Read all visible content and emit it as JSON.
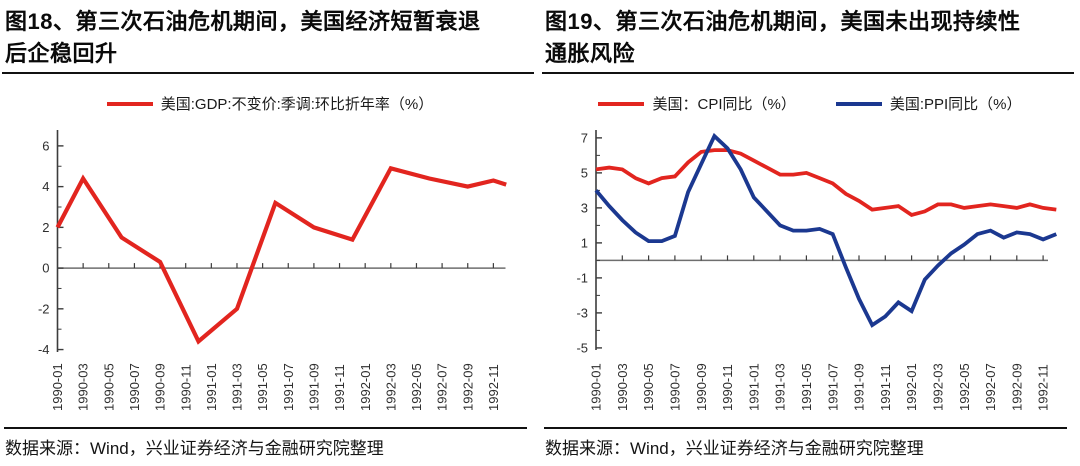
{
  "source_note": "数据来源：Wind，兴业证券经济与金融研究院整理",
  "colors": {
    "gdp_red": "#e2251f",
    "cpi_red": "#e2251f",
    "ppi_blue": "#1b3890"
  },
  "chart_data": [
    {
      "type": "line",
      "figure_label": "图18",
      "title": "图18、第三次石油危机期间，美国经济短暂衰退后企稳回升",
      "title_lines": [
        "图18、第三次石油危机期间，美国经济短暂衰退",
        "后企稳回升"
      ],
      "legend_position": "top-center",
      "grid": false,
      "ylim": [
        -4.12,
        6.78
      ],
      "y_major_ticks": [
        6,
        4,
        2,
        0,
        -2,
        -4
      ],
      "y_minor_ticks": [
        5,
        3,
        1,
        -1,
        -3
      ],
      "x_tick_labels": [
        "1990-01",
        "1990-03",
        "1990-05",
        "1990-07",
        "1990-09",
        "1990-11",
        "1991-01",
        "1991-03",
        "1991-05",
        "1991-07",
        "1991-09",
        "1991-11",
        "1992-01",
        "1992-03",
        "1992-05",
        "1992-07",
        "1992-09",
        "1992-11"
      ],
      "series": [
        {
          "name": "美国:GDP:不变价:季调:环比折年率（%）",
          "color": "#e2251f",
          "x_months": [
            0,
            2,
            5,
            8,
            11,
            14,
            17,
            20,
            23,
            26,
            29,
            32,
            34,
            35
          ],
          "values": [
            2.0,
            4.4,
            1.5,
            0.3,
            -3.6,
            -2.0,
            3.2,
            2.0,
            1.4,
            4.9,
            4.4,
            4.0,
            4.3,
            4.1
          ]
        }
      ],
      "source_note": "数据来源：Wind，兴业证券经济与金融研究院整理"
    },
    {
      "type": "line",
      "figure_label": "图19",
      "title": "图19、第三次石油危机期间，美国未出现持续性通胀风险",
      "title_lines": [
        "图19、第三次石油危机期间，美国未出现持续性",
        "通胀风险"
      ],
      "legend_position": "top-center",
      "grid": false,
      "ylim": [
        -5.12,
        7.45
      ],
      "y_major_ticks": [
        7,
        5,
        3,
        1,
        -1,
        -3,
        -5
      ],
      "y_minor_ticks": [
        6,
        4,
        2,
        0,
        -2,
        -4
      ],
      "x_tick_labels": [
        "1990-01",
        "1990-03",
        "1990-05",
        "1990-07",
        "1990-09",
        "1990-11",
        "1991-01",
        "1991-03",
        "1991-05",
        "1991-07",
        "1991-09",
        "1991-11",
        "1992-01",
        "1992-03",
        "1992-05",
        "1992-07",
        "1992-09",
        "1992-11"
      ],
      "series": [
        {
          "name": "美国：CPI同比（%）",
          "color": "#e2251f",
          "x_months": [
            0,
            1,
            2,
            3,
            4,
            5,
            6,
            7,
            8,
            9,
            10,
            11,
            12,
            13,
            14,
            15,
            16,
            17,
            18,
            19,
            20,
            21,
            22,
            23,
            24,
            25,
            26,
            27,
            28,
            29,
            30,
            31,
            32,
            33,
            34,
            35
          ],
          "values": [
            5.2,
            5.3,
            5.2,
            4.7,
            4.4,
            4.7,
            4.8,
            5.6,
            6.2,
            6.3,
            6.3,
            6.1,
            5.7,
            5.3,
            4.9,
            4.9,
            5.0,
            4.7,
            4.4,
            3.8,
            3.4,
            2.9,
            3.0,
            3.1,
            2.6,
            2.8,
            3.2,
            3.2,
            3.0,
            3.1,
            3.2,
            3.1,
            3.0,
            3.2,
            3.0,
            2.9
          ]
        },
        {
          "name": "美国:PPI同比（%）",
          "color": "#1b3890",
          "x_months": [
            0,
            1,
            2,
            3,
            4,
            5,
            6,
            7,
            8,
            9,
            10,
            11,
            12,
            13,
            14,
            15,
            16,
            17,
            18,
            19,
            20,
            21,
            22,
            23,
            24,
            25,
            26,
            27,
            28,
            29,
            30,
            31,
            32,
            33,
            34,
            35
          ],
          "values": [
            4.0,
            3.1,
            2.3,
            1.6,
            1.1,
            1.1,
            1.4,
            3.9,
            5.5,
            7.1,
            6.4,
            5.2,
            3.6,
            2.8,
            2.0,
            1.7,
            1.7,
            1.8,
            1.5,
            -0.4,
            -2.2,
            -3.7,
            -3.2,
            -2.4,
            -2.9,
            -1.1,
            -0.3,
            0.4,
            0.9,
            1.5,
            1.7,
            1.3,
            1.6,
            1.5,
            1.2,
            1.5
          ]
        }
      ],
      "source_note": "数据来源：Wind，兴业证券经济与金融研究院整理"
    }
  ]
}
